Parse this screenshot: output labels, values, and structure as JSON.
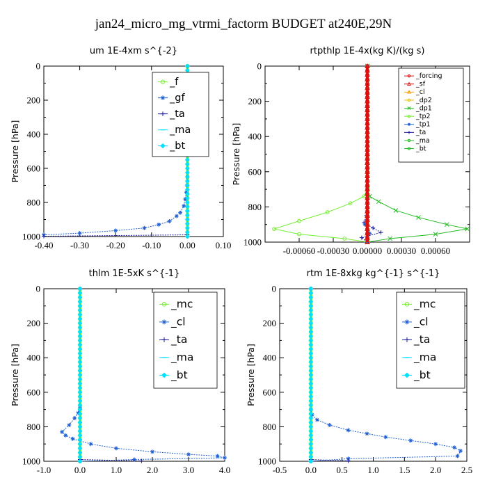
{
  "figure_title": "jan24_micro_mg_vtrmi_factorm  BUDGET at240E,29N",
  "colors": {
    "blue": "#1f5fd0",
    "navy": "#1a1aa0",
    "cyan": "#00e0ff",
    "green": "#22bb22",
    "lightgreen": "#77ee33",
    "red": "#dd1111",
    "orange": "#ff9900",
    "yellow": "#e8c000"
  },
  "chart_data": [
    {
      "type": "line",
      "title": "um   1E-4xm s^{-2}",
      "ylabel": "Pressure [hPa]",
      "xlim": [
        -0.4,
        0.1
      ],
      "ylim": [
        1000,
        0
      ],
      "xticks": [
        -0.4,
        -0.3,
        -0.2,
        -0.1,
        0.0,
        0.1
      ],
      "xtick_labels": [
        "-0.40",
        "-0.30",
        "-0.20",
        "-0.10",
        "0.00",
        "0.10"
      ],
      "yticks": [
        0,
        200,
        400,
        600,
        800,
        1000
      ],
      "legend_labels": [
        "_f",
        "_gf",
        "_ta",
        "_ma",
        "_bt"
      ],
      "legend_placement": "top-right",
      "series": [
        {
          "name": "_f",
          "color": "lightgreen",
          "marker": "o",
          "x": [
            0,
            0
          ],
          "y": [
            0,
            1000
          ]
        },
        {
          "name": "_gf",
          "color": "blue",
          "marker": "star",
          "x": [
            0,
            0,
            0,
            -0.001,
            -0.003,
            -0.006,
            -0.01,
            -0.02,
            -0.03,
            -0.05,
            -0.08,
            -0.12,
            -0.2,
            -0.3,
            -0.4
          ],
          "y": [
            0,
            500,
            650,
            700,
            740,
            780,
            820,
            860,
            880,
            910,
            930,
            950,
            965,
            980,
            990
          ]
        },
        {
          "name": "_ta",
          "color": "navy",
          "marker": "plus",
          "x": [
            0,
            0,
            -0.4
          ],
          "y": [
            0,
            990,
            998
          ]
        },
        {
          "name": "_ma",
          "color": "cyan",
          "marker": "dash",
          "x": [
            0,
            0
          ],
          "y": [
            0,
            1000
          ]
        },
        {
          "name": "_bt",
          "color": "cyan",
          "marker": "diamond",
          "x": [
            0,
            0
          ],
          "y": [
            0,
            1000
          ]
        }
      ]
    },
    {
      "type": "line",
      "title": "rtpthlp   1E-4x(kg K)/(kg s)",
      "ylabel": "Pressure [hPa]",
      "xlim": [
        -0.0009,
        0.0009
      ],
      "ylim": [
        1000,
        0
      ],
      "xticks": [
        -0.0006,
        -0.0003,
        0.0,
        0.0003,
        0.0006
      ],
      "xtick_labels": [
        "-0.00060",
        "-0.00030",
        "0.00000",
        "0.00030",
        "0.00060"
      ],
      "yticks": [
        0,
        200,
        400,
        600,
        800,
        1000
      ],
      "legend_labels": [
        "_forcing",
        "_sf",
        "_cl",
        "_dp2",
        "_dp1",
        "_tp2",
        "_tp1",
        "_ta",
        "_ma",
        "_bt"
      ],
      "legend_placement": "top-right",
      "series": [
        {
          "name": "_dp1",
          "color": "green",
          "marker": "x",
          "x": [
            0,
            0,
            2e-05,
            0.0001,
            0.00025,
            0.00045,
            0.0007,
            0.00088,
            0.0006,
            0.0002,
            0
          ],
          "y": [
            0,
            700,
            740,
            770,
            820,
            860,
            900,
            925,
            955,
            980,
            1000
          ]
        },
        {
          "name": "_tp2",
          "color": "lightgreen",
          "marker": "o",
          "x": [
            0,
            0,
            -3e-05,
            -0.00015,
            -0.00035,
            -0.0006,
            -0.00082,
            -0.0006,
            -0.0002,
            0
          ],
          "y": [
            0,
            700,
            740,
            780,
            830,
            880,
            925,
            955,
            980,
            1000
          ]
        },
        {
          "name": "_ta",
          "color": "navy",
          "marker": "plus",
          "x": [
            0,
            0,
            -1e-05,
            -3e-05,
            5e-05,
            0.00012,
            -5e-05,
            0
          ],
          "y": [
            0,
            780,
            850,
            890,
            920,
            945,
            975,
            1000
          ]
        },
        {
          "name": "_tp1",
          "color": "blue",
          "marker": "star",
          "x": [
            0,
            0,
            -2e-05,
            2e-05,
            0
          ],
          "y": [
            0,
            850,
            900,
            950,
            1000
          ]
        },
        {
          "name": "_cl",
          "color": "orange",
          "marker": "triangle",
          "x": [
            0,
            0
          ],
          "y": [
            0,
            1000
          ]
        },
        {
          "name": "_dp2",
          "color": "yellow",
          "marker": "o",
          "x": [
            0,
            0
          ],
          "y": [
            0,
            1000
          ]
        },
        {
          "name": "_sf",
          "color": "red",
          "marker": "triangle",
          "x": [
            0,
            0
          ],
          "y": [
            0,
            1000
          ]
        },
        {
          "name": "_forcing",
          "color": "red",
          "marker": "o",
          "x": [
            0,
            0
          ],
          "y": [
            0,
            1000
          ]
        }
      ]
    },
    {
      "type": "line",
      "title": "thlm   1E-5xK s^{-1}",
      "ylabel": "Pressure [hPa]",
      "xlim": [
        -1.0,
        4.0
      ],
      "ylim": [
        1000,
        0
      ],
      "xticks": [
        -1,
        0,
        1,
        2,
        3,
        4
      ],
      "xtick_labels": [
        "-1.0",
        "0.0",
        "1.0",
        "2.0",
        "3.0",
        "4.0"
      ],
      "yticks": [
        0,
        200,
        400,
        600,
        800,
        1000
      ],
      "legend_labels": [
        "_mc",
        "_cl",
        "_ta",
        "_ma",
        "_bt"
      ],
      "legend_placement": "top-right",
      "series": [
        {
          "name": "_mc",
          "color": "lightgreen",
          "marker": "o",
          "x": [
            0,
            0
          ],
          "y": [
            0,
            1000
          ]
        },
        {
          "name": "_cl",
          "color": "blue",
          "marker": "star",
          "x": [
            0,
            0,
            -0.05,
            -0.15,
            -0.3,
            -0.5,
            -0.4,
            -0.2,
            0.3,
            1.0,
            2.0,
            3.0,
            3.8,
            4.0,
            1.5,
            0
          ],
          "y": [
            0,
            690,
            720,
            750,
            790,
            830,
            850,
            870,
            900,
            925,
            945,
            960,
            970,
            980,
            990,
            1000
          ]
        },
        {
          "name": "_ta",
          "color": "navy",
          "marker": "plus",
          "x": [
            0,
            0,
            1.7
          ],
          "y": [
            0,
            990,
            998
          ]
        },
        {
          "name": "_ma",
          "color": "cyan",
          "marker": "dash",
          "x": [
            0,
            0
          ],
          "y": [
            0,
            1000
          ]
        },
        {
          "name": "_bt",
          "color": "cyan",
          "marker": "diamond",
          "x": [
            0,
            0
          ],
          "y": [
            0,
            1000
          ]
        }
      ]
    },
    {
      "type": "line",
      "title": "rtm   1E-8xkg kg^{-1} s^{-1}",
      "ylabel": "Pressure [hPa]",
      "xlim": [
        -0.5,
        2.5
      ],
      "ylim": [
        1000,
        0
      ],
      "xticks": [
        -0.5,
        0,
        0.5,
        1.0,
        1.5,
        2.0,
        2.5
      ],
      "xtick_labels": [
        "-0.5",
        "0.0",
        "0.5",
        "1.0",
        "1.5",
        "2.0",
        "2.5"
      ],
      "yticks": [
        0,
        200,
        400,
        600,
        800,
        1000
      ],
      "legend_labels": [
        "_mc",
        "_cl",
        "_ta",
        "_ma",
        "_bt"
      ],
      "legend_placement": "top-right",
      "series": [
        {
          "name": "_mc",
          "color": "lightgreen",
          "marker": "o",
          "x": [
            0,
            0
          ],
          "y": [
            0,
            1000
          ]
        },
        {
          "name": "_cl",
          "color": "blue",
          "marker": "star",
          "x": [
            0,
            0,
            0.02,
            0.1,
            0.3,
            0.6,
            0.9,
            1.2,
            1.6,
            2.0,
            2.3,
            2.4,
            2.35,
            0.6,
            0
          ],
          "y": [
            0,
            700,
            730,
            760,
            790,
            820,
            840,
            860,
            880,
            900,
            920,
            940,
            970,
            985,
            1000
          ]
        },
        {
          "name": "_ta",
          "color": "navy",
          "marker": "plus",
          "x": [
            0,
            0,
            0.6
          ],
          "y": [
            0,
            990,
            998
          ]
        },
        {
          "name": "_ma",
          "color": "cyan",
          "marker": "dash",
          "x": [
            0,
            0
          ],
          "y": [
            0,
            1000
          ]
        },
        {
          "name": "_bt",
          "color": "cyan",
          "marker": "diamond",
          "x": [
            0,
            0
          ],
          "y": [
            0,
            1000
          ]
        }
      ]
    }
  ]
}
